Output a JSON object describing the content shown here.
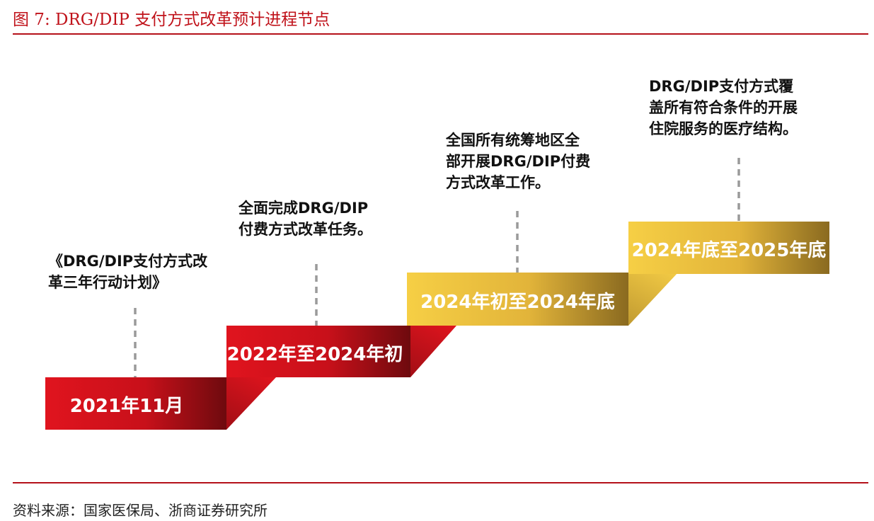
{
  "title": "图 7:  DRG/DIP 支付方式改革预计进程节点",
  "source": "资料来源：国家医保局、浙商证券研究所",
  "colors": {
    "accent": "#c0121a",
    "red_step": "#d0101c",
    "gold_step": "#f0c53a"
  },
  "steps": [
    {
      "label": "2021年11月",
      "note": "《DRG/DIP支付方式改\n革三年行动计划》"
    },
    {
      "label": "2022年至2024年初",
      "note": "全面完成DRG/DIP\n付费方式改革任务。"
    },
    {
      "label": "2024年初至2024年底",
      "note": "全国所有统筹地区全\n部开展DRG/DIP付费\n方式改革工作。"
    },
    {
      "label": "2024年底至2025年底",
      "note": "DRG/DIP支付方式覆\n盖所有符合条件的开展\n住院服务的医疗结构。"
    }
  ]
}
